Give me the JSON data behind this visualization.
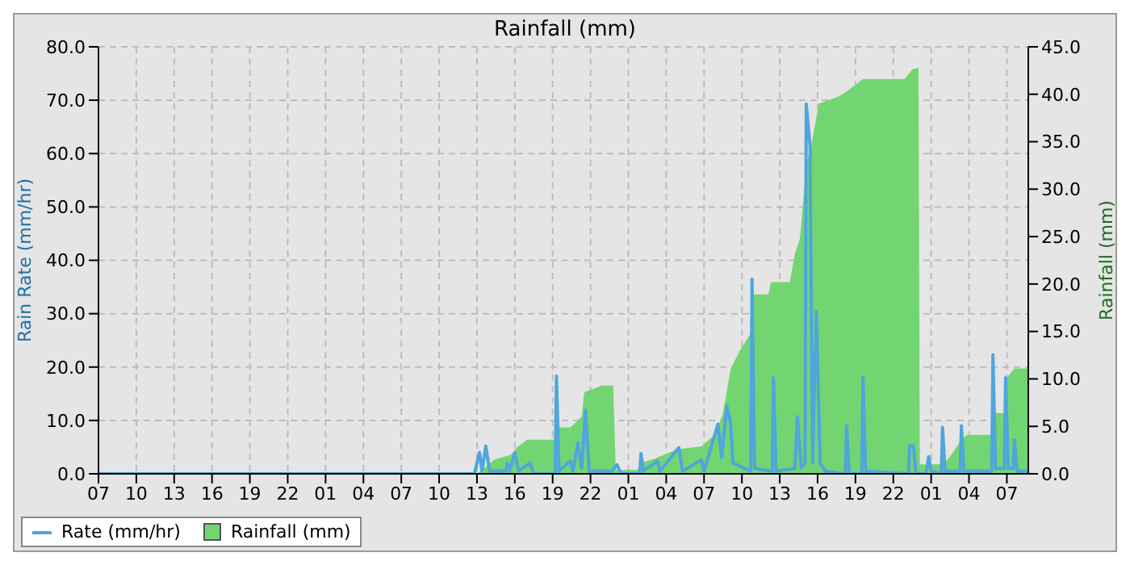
{
  "chart_data": {
    "type": "line",
    "title": "Rainfall (mm)",
    "ylabel": "Rain Rate (mm/hr)",
    "y2label": "Rainfall (mm)",
    "xlim": [
      "--01-01T07:00",
      "--01-04T08:42"
    ],
    "xticks": [
      {
        "value": "--01-01T07:00",
        "label": "07"
      },
      {
        "value": "--01-01T10:00",
        "label": "10"
      },
      {
        "value": "--01-01T13:00",
        "label": "13"
      },
      {
        "value": "--01-01T16:00",
        "label": "16"
      },
      {
        "value": "--01-01T19:00",
        "label": "19"
      },
      {
        "value": "--01-01T22:00",
        "label": "22"
      },
      {
        "value": "--01-02T01:00",
        "label": "01"
      },
      {
        "value": "--01-02T04:00",
        "label": "04"
      },
      {
        "value": "--01-02T07:00",
        "label": "07"
      },
      {
        "value": "--01-02T10:00",
        "label": "10"
      },
      {
        "value": "--01-02T13:00",
        "label": "13"
      },
      {
        "value": "--01-02T16:00",
        "label": "16"
      },
      {
        "value": "--01-02T19:00",
        "label": "19"
      },
      {
        "value": "--01-02T22:00",
        "label": "22"
      },
      {
        "value": "--01-03T01:00",
        "label": "01"
      },
      {
        "value": "--01-03T04:00",
        "label": "04"
      },
      {
        "value": "--01-03T07:00",
        "label": "07"
      },
      {
        "value": "--01-03T10:00",
        "label": "10"
      },
      {
        "value": "--01-03T13:00",
        "label": "13"
      },
      {
        "value": "--01-03T16:00",
        "label": "16"
      },
      {
        "value": "--01-03T19:00",
        "label": "19"
      },
      {
        "value": "--01-03T22:00",
        "label": "22"
      },
      {
        "value": "--01-04T01:00",
        "label": "01"
      },
      {
        "value": "--01-04T04:00",
        "label": "04"
      },
      {
        "value": "--01-04T07:00",
        "label": "07"
      }
    ],
    "ylim": [
      0,
      80
    ],
    "yticks": [
      {
        "value": 0,
        "label": "0.0"
      },
      {
        "value": 10,
        "label": "10.0"
      },
      {
        "value": 20,
        "label": "20.0"
      },
      {
        "value": 30,
        "label": "30.0"
      },
      {
        "value": 40,
        "label": "40.0"
      },
      {
        "value": 50,
        "label": "50.0"
      },
      {
        "value": 60,
        "label": "60.0"
      },
      {
        "value": 70,
        "label": "70.0"
      },
      {
        "value": 80,
        "label": "80.0"
      }
    ],
    "y2lim": [
      0,
      45
    ],
    "y2ticks": [
      {
        "value": 0,
        "label": "0.0"
      },
      {
        "value": 5,
        "label": "5.0"
      },
      {
        "value": 10,
        "label": "10.0"
      },
      {
        "value": 15,
        "label": "15.0"
      },
      {
        "value": 20,
        "label": "20.0"
      },
      {
        "value": 25,
        "label": "25.0"
      },
      {
        "value": 30,
        "label": "30.0"
      },
      {
        "value": 35,
        "label": "35.0"
      },
      {
        "value": 40,
        "label": "40.0"
      },
      {
        "value": 45,
        "label": "45.0"
      }
    ],
    "grid": true,
    "legend": "bottom",
    "marker": "none",
    "line_style": "solid",
    "series": [
      {
        "name": "Rate (mm/hr)",
        "color": "#4ea6dc",
        "x": [
          "--01-01T07:00",
          "--01-02T12:48",
          "--01-02T13:12",
          "--01-02T13:24",
          "--01-02T13:42",
          "--01-02T14:00",
          "--01-02T15:18",
          "--01-02T15:24",
          "--01-02T15:36",
          "--01-02T16:00",
          "--01-02T16:18",
          "--01-02T17:12",
          "--01-02T17:30",
          "--01-02T19:12",
          "--01-02T19:18",
          "--01-02T19:30",
          "--01-02T20:24",
          "--01-02T20:36",
          "--01-02T21:00",
          "--01-02T21:18",
          "--01-02T21:36",
          "--01-02T21:54",
          "--01-02T23:42",
          "--01-03T00:06",
          "--01-03T00:24",
          "--01-03T01:54",
          "--01-03T02:00",
          "--01-03T02:12",
          "--01-03T03:18",
          "--01-03T03:30",
          "--01-03T05:00",
          "--01-03T05:18",
          "--01-03T06:48",
          "--01-03T07:00",
          "--01-03T08:06",
          "--01-03T08:24",
          "--01-03T08:48",
          "--01-03T09:06",
          "--01-03T09:18",
          "--01-03T10:42",
          "--01-03T10:48",
          "--01-03T11:00",
          "--01-03T12:24",
          "--01-03T12:30",
          "--01-03T12:42",
          "--01-03T14:12",
          "--01-03T14:24",
          "--01-03T14:42",
          "--01-03T15:00",
          "--01-03T15:06",
          "--01-03T15:24",
          "--01-03T15:36",
          "--01-03T15:54",
          "--01-03T16:12",
          "--01-03T16:36",
          "--01-03T18:12",
          "--01-03T18:18",
          "--01-03T18:30",
          "--01-03T19:30",
          "--01-03T19:36",
          "--01-03T19:48",
          "--01-03T23:12",
          "--01-03T23:18",
          "--01-03T23:36",
          "--01-03T23:48",
          "--01-04T00:36",
          "--01-04T00:48",
          "--01-04T01:00",
          "--01-04T01:48",
          "--01-04T01:54",
          "--01-04T02:06",
          "--01-04T03:18",
          "--01-04T03:24",
          "--01-04T03:36",
          "--01-04T05:48",
          "--01-04T05:54",
          "--01-04T06:06",
          "--01-04T06:48",
          "--01-04T06:54",
          "--01-04T07:06",
          "--01-04T07:30",
          "--01-04T07:36",
          "--01-04T07:48",
          "--01-04T08:42"
        ],
        "values": [
          0,
          0,
          4.0,
          0.5,
          5.2,
          0.5,
          0.5,
          2.0,
          0.5,
          4.0,
          0.5,
          2.0,
          0,
          0,
          18.3,
          0.5,
          2.4,
          0.5,
          5.8,
          1,
          11.9,
          0.5,
          0.5,
          1.7,
          0,
          0,
          3.8,
          0.5,
          2.4,
          0.5,
          4.9,
          0.5,
          2.6,
          0.5,
          9.3,
          3,
          12.7,
          9.5,
          2,
          0.5,
          36.5,
          1,
          0.5,
          18.0,
          0.5,
          1,
          10.7,
          1,
          2,
          69.3,
          61.4,
          2,
          30.4,
          2,
          0.5,
          0,
          9.0,
          0,
          0,
          18.0,
          0.5,
          0,
          5.2,
          5.2,
          0,
          0,
          3.2,
          0.5,
          0,
          8.7,
          0.5,
          0.5,
          9.0,
          0.5,
          0.5,
          22.3,
          1,
          1,
          18.0,
          1,
          1,
          6.4,
          0.5,
          0.5
        ]
      },
      {
        "name": "Rainfall (mm)",
        "type": "area",
        "axis": "y2",
        "color": "#72d572",
        "x": [
          "--01-01T07:00",
          "--01-02T13:00",
          "--01-02T13:12",
          "--01-02T14:24",
          "--01-02T15:42",
          "--01-02T16:12",
          "--01-02T17:00",
          "--01-02T19:06",
          "--01-02T19:30",
          "--01-02T20:24",
          "--01-02T21:18",
          "--01-02T21:30",
          "--01-02T22:54",
          "--01-02T23:48",
          "--01-03T00:00",
          "--01-03T01:42",
          "--01-03T02:06",
          "--01-03T03:06",
          "--01-03T04:54",
          "--01-03T06:48",
          "--01-03T07:54",
          "--01-03T08:30",
          "--01-03T09:06",
          "--01-03T09:48",
          "--01-03T10:42",
          "--01-03T10:54",
          "--01-03T12:06",
          "--01-03T12:18",
          "--01-03T13:48",
          "--01-03T14:12",
          "--01-03T14:36",
          "--01-03T15:06",
          "--01-03T15:30",
          "--01-03T16:06",
          "--01-03T17:42",
          "--01-03T18:18",
          "--01-03T19:36",
          "--01-03T22:54",
          "--01-03T23:30",
          "--01-04T00:00",
          "--01-04T00:06",
          "--01-04T02:00",
          "--01-04T02:36",
          "--01-04T03:18",
          "--01-04T03:48",
          "--01-04T05:42",
          "--01-04T06:06",
          "--01-04T06:48",
          "--01-04T07:00",
          "--01-04T07:36",
          "--01-04T08:42"
        ],
        "values": [
          0,
          0,
          0.2,
          1.5,
          2.0,
          2.8,
          3.6,
          3.6,
          4.9,
          4.9,
          6.0,
          8.6,
          9.3,
          9.3,
          0.4,
          0.4,
          1.2,
          1.6,
          2.6,
          2.9,
          4.2,
          6.4,
          11.0,
          12.9,
          14.8,
          18.9,
          18.9,
          20.2,
          20.2,
          23.2,
          24.8,
          32.5,
          34.6,
          39.0,
          39.8,
          40.3,
          41.6,
          41.6,
          42.6,
          42.8,
          1.0,
          1.0,
          2.0,
          3.4,
          4.1,
          4.1,
          6.4,
          6.4,
          10.1,
          11.1,
          11.1
        ]
      }
    ]
  }
}
